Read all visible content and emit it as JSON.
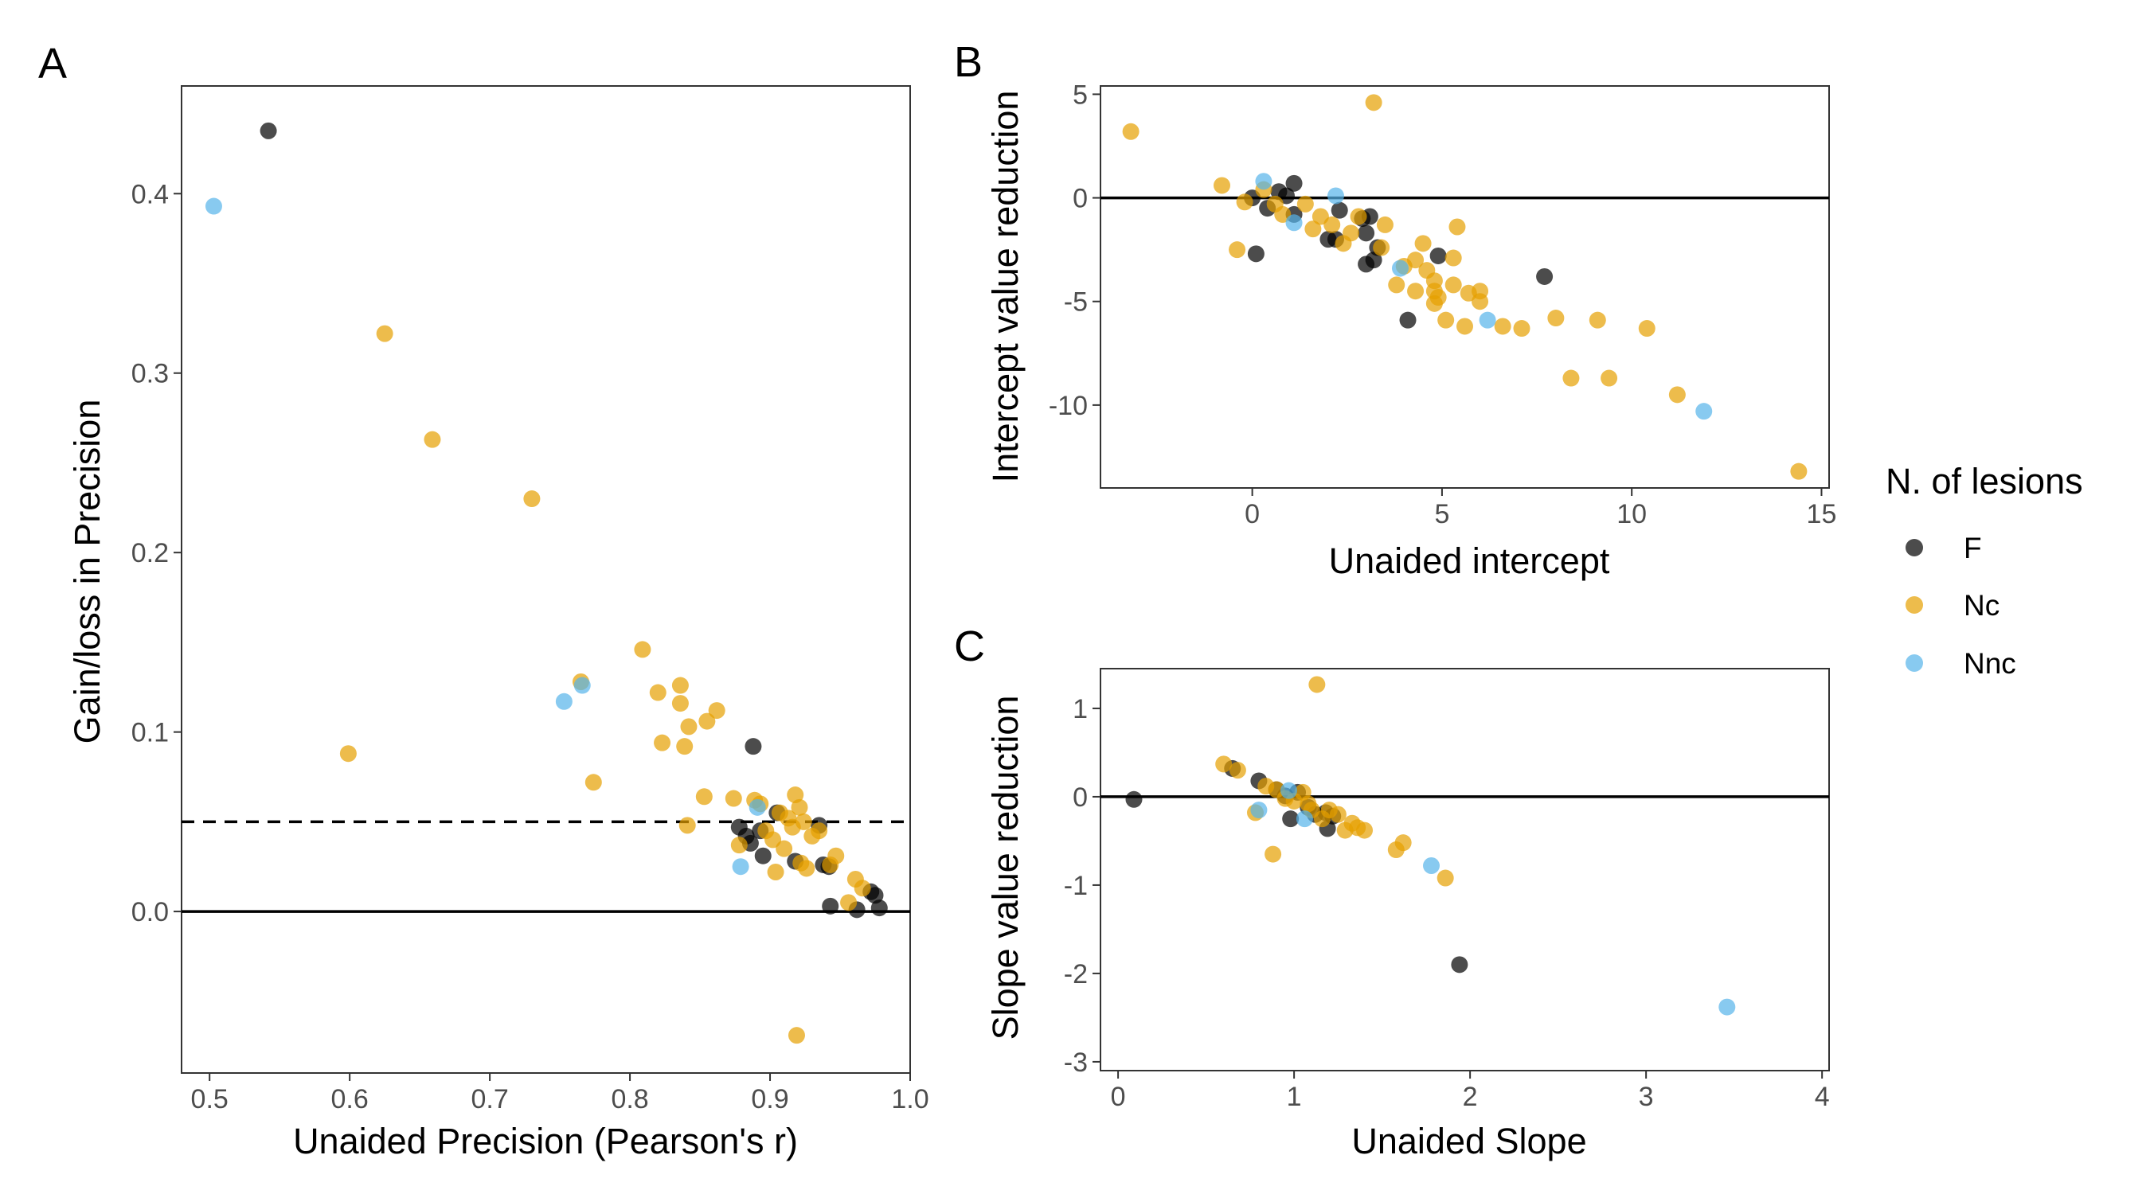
{
  "colors": {
    "F": "#000000",
    "Nc": "#E69F00",
    "Nnc": "#56B4E9"
  },
  "legend": {
    "title": "N. of lesions",
    "entries": [
      {
        "key": "F",
        "label": "F"
      },
      {
        "key": "Nc",
        "label": "Nc"
      },
      {
        "key": "Nnc",
        "label": "Nnc"
      }
    ]
  },
  "chart_data": [
    {
      "panel": "A",
      "type": "scatter",
      "xlabel": "Unaided Precision (Pearson's r)",
      "ylabel": "Gain/loss in Precision",
      "xlim": [
        0.48,
        1.0
      ],
      "ylim": [
        -0.09,
        0.46
      ],
      "xticks": [
        0.5,
        0.6,
        0.7,
        0.8,
        0.9,
        1.0
      ],
      "xtick_labels": [
        "0.5",
        "0.6",
        "0.7",
        "0.8",
        "0.9",
        "1.0"
      ],
      "yticks": [
        0.0,
        0.1,
        0.2,
        0.3,
        0.4
      ],
      "ytick_labels": [
        "0.0",
        "0.1",
        "0.2",
        "0.3",
        "0.4"
      ],
      "hlines": [
        {
          "y": 0,
          "style": "solid"
        },
        {
          "y": 0.05,
          "style": "dashed"
        }
      ],
      "series": [
        {
          "name": "F",
          "points": [
            [
              0.542,
              0.435
            ],
            [
              0.888,
              0.092
            ],
            [
              0.878,
              0.047
            ],
            [
              0.883,
              0.042
            ],
            [
              0.893,
              0.045
            ],
            [
              0.886,
              0.038
            ],
            [
              0.895,
              0.031
            ],
            [
              0.905,
              0.055
            ],
            [
              0.918,
              0.028
            ],
            [
              0.935,
              0.048
            ],
            [
              0.938,
              0.026
            ],
            [
              0.942,
              0.025
            ],
            [
              0.943,
              0.003
            ],
            [
              0.962,
              0.001
            ],
            [
              0.972,
              0.011
            ],
            [
              0.975,
              0.009
            ],
            [
              0.978,
              0.002
            ]
          ]
        },
        {
          "name": "Nc",
          "points": [
            [
              0.625,
              0.322
            ],
            [
              0.659,
              0.263
            ],
            [
              0.73,
              0.23
            ],
            [
              0.599,
              0.088
            ],
            [
              0.765,
              0.128
            ],
            [
              0.774,
              0.072
            ],
            [
              0.809,
              0.146
            ],
            [
              0.82,
              0.122
            ],
            [
              0.823,
              0.094
            ],
            [
              0.836,
              0.126
            ],
            [
              0.836,
              0.116
            ],
            [
              0.839,
              0.092
            ],
            [
              0.842,
              0.103
            ],
            [
              0.841,
              0.048
            ],
            [
              0.853,
              0.064
            ],
            [
              0.855,
              0.106
            ],
            [
              0.862,
              0.112
            ],
            [
              0.874,
              0.063
            ],
            [
              0.878,
              0.037
            ],
            [
              0.889,
              0.062
            ],
            [
              0.893,
              0.06
            ],
            [
              0.897,
              0.045
            ],
            [
              0.902,
              0.04
            ],
            [
              0.904,
              0.022
            ],
            [
              0.907,
              0.055
            ],
            [
              0.91,
              0.035
            ],
            [
              0.913,
              0.052
            ],
            [
              0.916,
              0.047
            ],
            [
              0.918,
              0.065
            ],
            [
              0.921,
              0.058
            ],
            [
              0.924,
              0.05
            ],
            [
              0.922,
              0.027
            ],
            [
              0.926,
              0.024
            ],
            [
              0.93,
              0.042
            ],
            [
              0.935,
              0.045
            ],
            [
              0.943,
              0.026
            ],
            [
              0.947,
              0.031
            ],
            [
              0.956,
              0.005
            ],
            [
              0.961,
              0.018
            ],
            [
              0.966,
              0.013
            ],
            [
              0.919,
              -0.069
            ]
          ]
        },
        {
          "name": "Nnc",
          "points": [
            [
              0.503,
              0.393
            ],
            [
              0.753,
              0.117
            ],
            [
              0.766,
              0.126
            ],
            [
              0.879,
              0.025
            ],
            [
              0.891,
              0.058
            ]
          ]
        }
      ]
    },
    {
      "panel": "B",
      "type": "scatter",
      "xlabel": "Unaided intercept",
      "ylabel": "Intercept value reduction",
      "xlim": [
        -4.0,
        15.2
      ],
      "ylim": [
        -14.0,
        5.4
      ],
      "xticks": [
        0,
        5,
        10,
        15
      ],
      "xtick_labels": [
        "0",
        "5",
        "10",
        "15"
      ],
      "yticks": [
        5,
        0,
        -5,
        -10
      ],
      "ytick_labels": [
        "5",
        "0",
        "-5",
        "-10"
      ],
      "hlines": [
        {
          "y": 0,
          "style": "solid"
        }
      ],
      "series": [
        {
          "name": "F",
          "points": [
            [
              0.0,
              0.0
            ],
            [
              0.1,
              -2.7
            ],
            [
              0.4,
              -0.5
            ],
            [
              0.7,
              0.3
            ],
            [
              0.9,
              0.1
            ],
            [
              1.1,
              0.7
            ],
            [
              1.1,
              -0.8
            ],
            [
              2.0,
              -2.0
            ],
            [
              2.2,
              -2.0
            ],
            [
              2.3,
              -0.6
            ],
            [
              2.9,
              -1.0
            ],
            [
              3.0,
              -1.7
            ],
            [
              3.0,
              -3.2
            ],
            [
              3.1,
              -0.9
            ],
            [
              3.2,
              -3.0
            ],
            [
              3.3,
              -2.4
            ],
            [
              4.1,
              -5.9
            ],
            [
              4.9,
              -2.8
            ],
            [
              7.7,
              -3.8
            ]
          ]
        },
        {
          "name": "Nc",
          "points": [
            [
              -3.2,
              3.2
            ],
            [
              -0.8,
              0.6
            ],
            [
              -0.4,
              -2.5
            ],
            [
              -0.2,
              -0.2
            ],
            [
              0.3,
              0.4
            ],
            [
              0.6,
              -0.3
            ],
            [
              0.8,
              -0.8
            ],
            [
              1.4,
              -0.3
            ],
            [
              1.6,
              -1.5
            ],
            [
              1.8,
              -0.9
            ],
            [
              2.1,
              -1.3
            ],
            [
              2.4,
              -2.2
            ],
            [
              2.6,
              -1.7
            ],
            [
              2.8,
              -0.9
            ],
            [
              3.2,
              4.6
            ],
            [
              3.4,
              -2.4
            ],
            [
              3.5,
              -1.3
            ],
            [
              3.8,
              -4.2
            ],
            [
              4.0,
              -3.3
            ],
            [
              4.3,
              -4.5
            ],
            [
              4.3,
              -3.0
            ],
            [
              4.5,
              -2.2
            ],
            [
              4.6,
              -3.5
            ],
            [
              4.8,
              -4.0
            ],
            [
              4.8,
              -4.5
            ],
            [
              4.8,
              -5.1
            ],
            [
              4.9,
              -4.8
            ],
            [
              5.1,
              -5.9
            ],
            [
              5.3,
              -4.2
            ],
            [
              5.3,
              -2.9
            ],
            [
              5.4,
              -1.4
            ],
            [
              5.6,
              -6.2
            ],
            [
              5.7,
              -4.6
            ],
            [
              6.0,
              -4.5
            ],
            [
              6.0,
              -5.0
            ],
            [
              6.6,
              -6.2
            ],
            [
              7.1,
              -6.3
            ],
            [
              8.0,
              -5.8
            ],
            [
              8.4,
              -8.7
            ],
            [
              9.1,
              -5.9
            ],
            [
              9.4,
              -8.7
            ],
            [
              10.4,
              -6.3
            ],
            [
              11.2,
              -9.5
            ],
            [
              14.4,
              -13.2
            ]
          ]
        },
        {
          "name": "Nnc",
          "points": [
            [
              0.3,
              0.8
            ],
            [
              1.1,
              -1.2
            ],
            [
              2.2,
              0.1
            ],
            [
              3.9,
              -3.4
            ],
            [
              6.2,
              -5.9
            ],
            [
              11.9,
              -10.3
            ]
          ]
        }
      ]
    },
    {
      "panel": "C",
      "type": "scatter",
      "xlabel": "Unaided Slope",
      "ylabel": "Slope value reduction",
      "xlim": [
        -0.1,
        4.04
      ],
      "ylim": [
        -3.1,
        1.45
      ],
      "xticks": [
        0,
        1,
        2,
        3,
        4
      ],
      "xtick_labels": [
        "0",
        "1",
        "2",
        "3",
        "4"
      ],
      "yticks": [
        1,
        0,
        -1,
        -2,
        -3
      ],
      "ytick_labels": [
        "1",
        "0",
        "-1",
        "-2",
        "-3"
      ],
      "hlines": [
        {
          "y": 0,
          "style": "solid"
        }
      ],
      "series": [
        {
          "name": "F",
          "points": [
            [
              0.09,
              -0.03
            ],
            [
              0.65,
              0.32
            ],
            [
              0.8,
              0.18
            ],
            [
              0.9,
              0.08
            ],
            [
              0.95,
              0.01
            ],
            [
              0.98,
              -0.25
            ],
            [
              1.02,
              0.05
            ],
            [
              1.08,
              -0.12
            ],
            [
              1.12,
              -0.2
            ],
            [
              1.18,
              -0.18
            ],
            [
              1.19,
              -0.36
            ],
            [
              1.22,
              -0.22
            ],
            [
              1.94,
              -1.9
            ]
          ]
        },
        {
          "name": "Nc",
          "points": [
            [
              0.6,
              0.37
            ],
            [
              0.68,
              0.3
            ],
            [
              0.78,
              -0.18
            ],
            [
              0.84,
              0.12
            ],
            [
              0.88,
              -0.65
            ],
            [
              0.9,
              0.08
            ],
            [
              0.95,
              -0.02
            ],
            [
              1.0,
              -0.05
            ],
            [
              1.05,
              0.05
            ],
            [
              1.08,
              -0.08
            ],
            [
              1.1,
              -0.15
            ],
            [
              1.13,
              1.27
            ],
            [
              1.16,
              -0.25
            ],
            [
              1.2,
              -0.15
            ],
            [
              1.25,
              -0.2
            ],
            [
              1.29,
              -0.38
            ],
            [
              1.33,
              -0.3
            ],
            [
              1.36,
              -0.35
            ],
            [
              1.4,
              -0.38
            ],
            [
              1.58,
              -0.6
            ],
            [
              1.62,
              -0.52
            ],
            [
              1.86,
              -0.92
            ]
          ]
        },
        {
          "name": "Nnc",
          "points": [
            [
              0.8,
              -0.15
            ],
            [
              0.97,
              0.07
            ],
            [
              1.06,
              -0.25
            ],
            [
              1.78,
              -0.78
            ],
            [
              3.46,
              -2.38
            ]
          ]
        }
      ]
    }
  ]
}
